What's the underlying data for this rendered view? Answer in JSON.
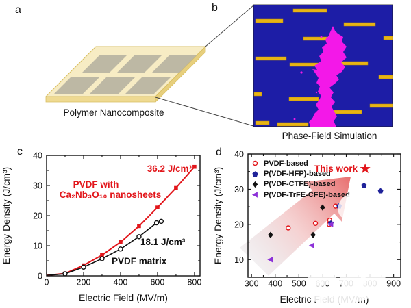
{
  "figure": {
    "panels": {
      "a": {
        "letter": "a",
        "caption": "Polymer Nanocomposite"
      },
      "b": {
        "letter": "b",
        "caption": "Phase-Field Simulation"
      },
      "c": {
        "letter": "c"
      },
      "d": {
        "letter": "d"
      }
    }
  },
  "colors": {
    "red_accent": "#e2161b",
    "blue_series": "#1f2299",
    "purple_series": "#8d32d8",
    "black_series": "#111111",
    "magenta_breakdown": "#f318e8",
    "simulation_background": "#1d1da6",
    "nanosheet_gold": "#e8b414"
  },
  "chart_data": [
    {
      "id": "c",
      "type": "line",
      "xlabel": "Electric Field (MV/m)",
      "ylabel": "Energy Density (J/cm³)",
      "xlim": [
        0,
        830
      ],
      "ylim": [
        0,
        40
      ],
      "xticks": [
        0,
        200,
        400,
        600,
        800
      ],
      "yticks": [
        0,
        10,
        20,
        30,
        40
      ],
      "xminor": 100,
      "yminor": 5,
      "series": [
        {
          "name": "PVDF with Ca₂Nb₃O₁₀ nanosheets",
          "color": "#e2161b",
          "marker": "square",
          "width": 2,
          "skip_first_marker": true,
          "x": [
            0,
            100,
            200,
            300,
            400,
            500,
            600,
            700,
            800
          ],
          "y": [
            0.15,
            0.8,
            3.5,
            6.9,
            11.2,
            16.5,
            22.7,
            29.2,
            36.2
          ]
        },
        {
          "name": "PVDF matrix",
          "color": "#111111",
          "marker": "circle-open",
          "width": 1.6,
          "skip_first_marker": true,
          "x": [
            0,
            100,
            200,
            300,
            400,
            500,
            595,
            620
          ],
          "y": [
            0.15,
            0.7,
            2.9,
            5.7,
            8.9,
            13.0,
            17.6,
            18.1
          ]
        }
      ],
      "annotations": [
        {
          "text": "36.2 J/cm³"
        },
        {
          "text": "PVDF with"
        },
        {
          "text": "Ca₂Nb₃O₁₀ nanosheets"
        },
        {
          "text": "18.1 J/cm³"
        },
        {
          "text": "PVDF matrix"
        }
      ]
    },
    {
      "id": "d",
      "type": "scatter",
      "xlabel": "Electric Field (MV/m)",
      "ylabel": "Energy Density (J/cm³)",
      "xlim": [
        285,
        930
      ],
      "ylim": [
        5,
        40
      ],
      "xticks": [
        300,
        400,
        500,
        600,
        700,
        800,
        900
      ],
      "yticks": [
        10,
        20,
        30,
        40
      ],
      "xminor": 50,
      "yminor": 5,
      "series": [
        {
          "name": "PVDF-based",
          "color": "#e2161b",
          "marker": "circle-open",
          "x": [
            455,
            570,
            628,
            630,
            655
          ],
          "y": [
            19,
            20.3,
            20,
            21.2,
            25.2
          ]
        },
        {
          "name": "P(VDF-HFP)-based",
          "color": "#1f2299",
          "marker": "pentagon",
          "x": [
            635,
            670,
            775,
            845
          ],
          "y": [
            20.3,
            25.2,
            31,
            29.5
          ]
        },
        {
          "name": "P(VDF-CTFE)-based",
          "color": "#111111",
          "marker": "diamond",
          "x": [
            380,
            560,
            600
          ],
          "y": [
            17,
            17,
            24.8
          ]
        },
        {
          "name": "P(VDF-TrFE-CFE)-based",
          "color": "#8d32d8",
          "marker": "triangle-left",
          "x": [
            380,
            555,
            635
          ],
          "y": [
            10,
            14,
            20
          ]
        }
      ],
      "highlight": {
        "label": "This work",
        "color": "#e2161b",
        "marker": "star",
        "x": 780,
        "y": 35.8
      }
    }
  ]
}
